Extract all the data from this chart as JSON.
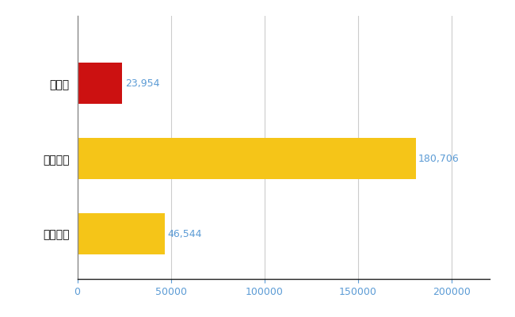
{
  "categories": [
    "愛媛県",
    "全国最大",
    "全国平均"
  ],
  "values": [
    23954,
    180706,
    46544
  ],
  "bar_colors": [
    "#cc1111",
    "#f5c518",
    "#f5c518"
  ],
  "value_labels": [
    "23,954",
    "180,706",
    "46,544"
  ],
  "xlim": [
    0,
    220000
  ],
  "xticks": [
    0,
    50000,
    100000,
    150000,
    200000
  ],
  "xtick_labels": [
    "0",
    "50000",
    "100000",
    "150000",
    "200000"
  ],
  "label_color": "#5b9bd5",
  "grid_color": "#cccccc",
  "background_color": "#ffffff",
  "bar_height": 0.55,
  "label_fontsize": 10,
  "tick_fontsize": 9,
  "value_label_fontsize": 9
}
